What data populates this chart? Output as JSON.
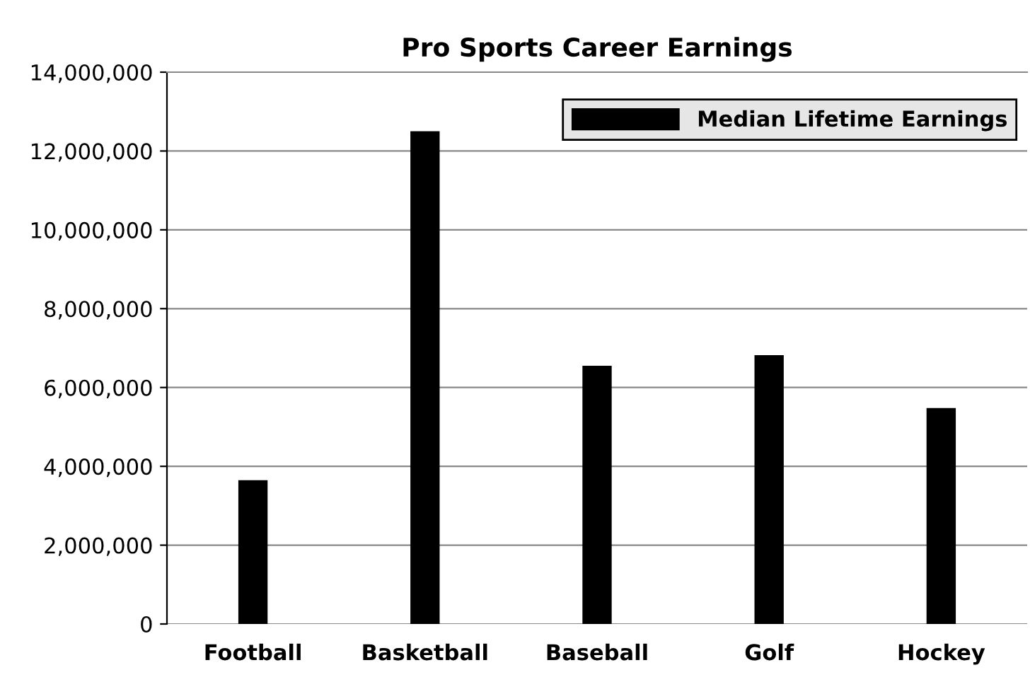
{
  "chart_data": {
    "type": "bar",
    "title": "Pro Sports Career Earnings",
    "categories": [
      "Football",
      "Basketball",
      "Baseball",
      "Golf",
      "Hockey"
    ],
    "series": [
      {
        "name": "Median Lifetime Earnings",
        "color": "#000000",
        "values": [
          3650000,
          12500000,
          6550000,
          6820000,
          5480000
        ]
      }
    ],
    "ylim": [
      0,
      14000000
    ],
    "yticks": [
      {
        "value": 0,
        "label": "0"
      },
      {
        "value": 2000000,
        "label": "2,000,000"
      },
      {
        "value": 4000000,
        "label": "4,000,000"
      },
      {
        "value": 6000000,
        "label": "6,000,000"
      },
      {
        "value": 8000000,
        "label": "8,000,000"
      },
      {
        "value": 10000000,
        "label": "10,000,000"
      },
      {
        "value": 12000000,
        "label": "12,000,000"
      },
      {
        "value": 14000000,
        "label": "14,000,000"
      }
    ],
    "grid": "y",
    "legend": "top right"
  }
}
